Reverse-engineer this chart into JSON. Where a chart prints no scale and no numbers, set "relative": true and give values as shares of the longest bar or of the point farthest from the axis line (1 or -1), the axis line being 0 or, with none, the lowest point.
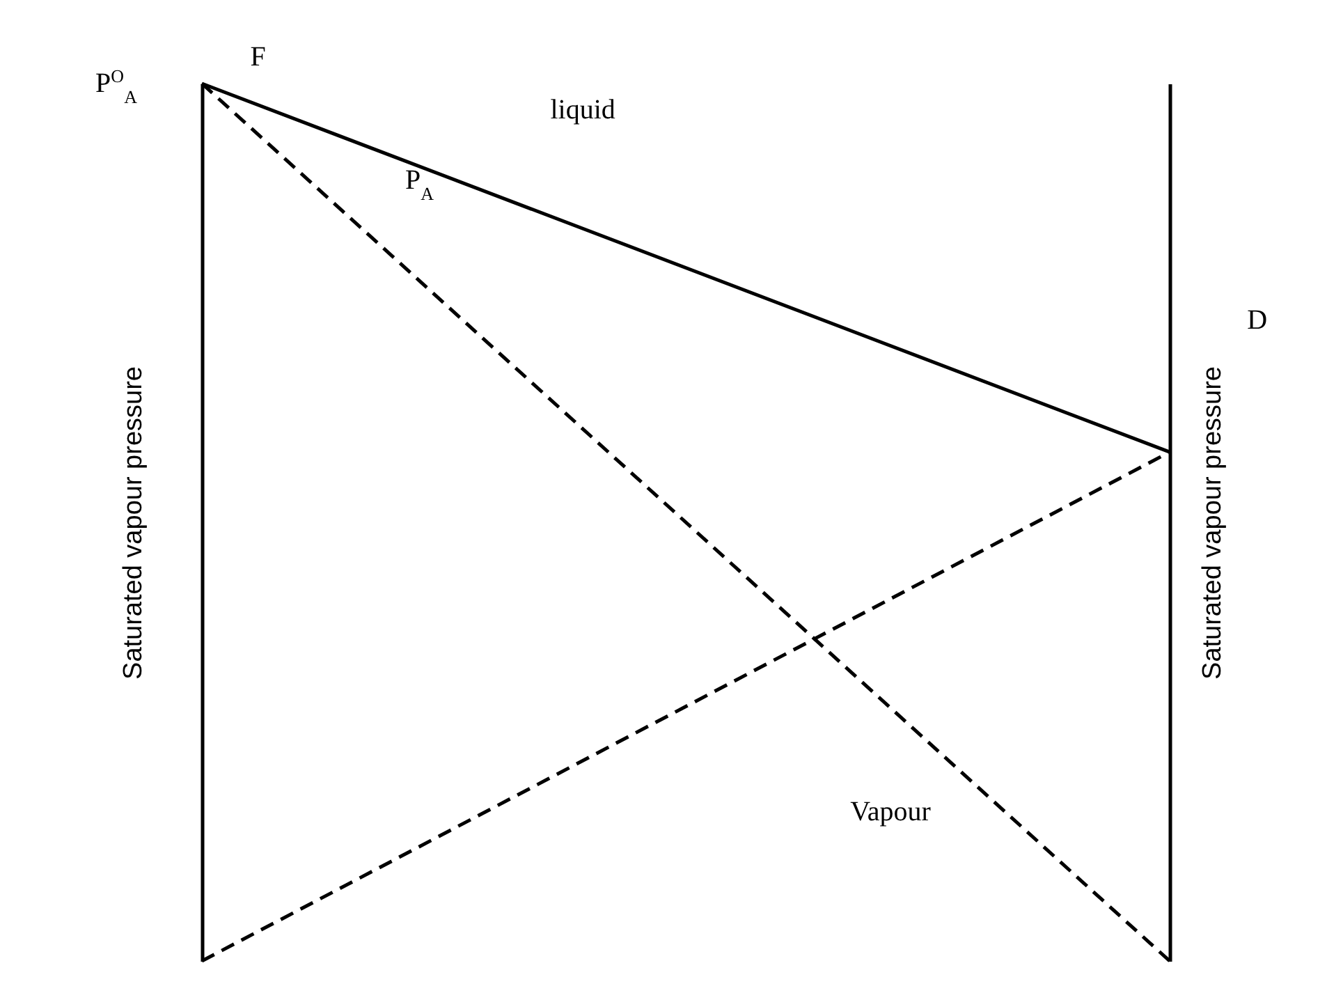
{
  "chart_data": {
    "type": "line",
    "relative": true,
    "categories": [
      null,
      null
    ],
    "ylabel": "Saturated vapour pressure",
    "y2label": "Saturated vapour pressure",
    "series": [
      {
        "color": "#000000",
        "line_style": "solid",
        "values": [
          1,
          0.58
        ]
      },
      {
        "color": "#000000",
        "line_style": "dashed",
        "values": [
          1,
          0
        ]
      },
      {
        "color": "#000000",
        "line_style": "dashed",
        "values": [
          0,
          0.58
        ]
      }
    ],
    "annotations": [
      "P$^{O}$$_{A}$",
      "F",
      "liquid",
      "P$_{A}$",
      "D",
      "Vapour"
    ]
  }
}
